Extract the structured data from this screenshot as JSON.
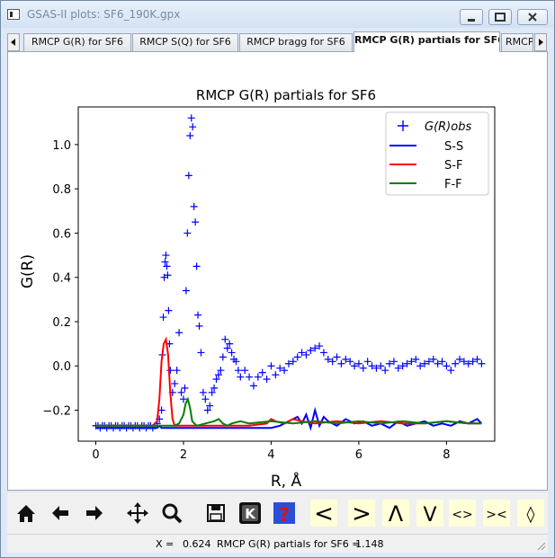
{
  "window": {
    "title": "GSAS-II plots: SF6_190K.gpx"
  },
  "tabs": [
    "RMCP G(R) for SF6",
    "RMCP S(Q) for SF6",
    "RMCP bragg for SF6",
    "RMCP G(R) partials for SF6",
    "RMCP"
  ],
  "active_tab": 3,
  "toolbar": {
    "home": "home-icon",
    "back": "back-arrow-icon",
    "forward": "forward-arrow-icon",
    "pan": "pan-icon",
    "zoom": "zoom-icon",
    "save": "save-icon",
    "key": "K",
    "help": "?",
    "left": "<",
    "right": ">",
    "up": "Λ",
    "down": "V",
    "expand": "<>",
    "contract": "><",
    "updown": "◊"
  },
  "status": {
    "x_label": "X =",
    "x_value": "0.624",
    "y_label": "RMCP G(R) partials for SF6 =",
    "y_value": "1.148"
  },
  "chart_data": {
    "type": "line",
    "title": "RMCP G(R) partials for SF6",
    "xlabel": "R, Å",
    "ylabel": "G(R)",
    "xlim": [
      -0.4,
      9.1
    ],
    "ylim": [
      -0.34,
      1.17
    ],
    "xticks": [
      0,
      2,
      4,
      6,
      8
    ],
    "yticks": [
      -0.2,
      0.0,
      0.2,
      0.4,
      0.6,
      0.8,
      1.0
    ],
    "legend_position": "top-right",
    "legend": [
      "G(R)obs",
      "S-S",
      "S-F",
      "F-F"
    ],
    "series": [
      {
        "name": "G(R)obs",
        "style": "marker",
        "color": "#0000ff",
        "x": [
          0.0,
          0.05,
          0.1,
          0.15,
          0.2,
          0.25,
          0.3,
          0.35,
          0.4,
          0.45,
          0.5,
          0.55,
          0.6,
          0.65,
          0.7,
          0.75,
          0.8,
          0.85,
          0.9,
          0.95,
          1.0,
          1.05,
          1.1,
          1.15,
          1.2,
          1.25,
          1.3,
          1.35,
          1.4,
          1.45,
          1.5,
          1.52,
          1.54,
          1.56,
          1.58,
          1.6,
          1.62,
          1.64,
          1.66,
          1.68,
          1.7,
          1.75,
          1.8,
          1.85,
          1.9,
          1.95,
          2.0,
          2.03,
          2.06,
          2.09,
          2.12,
          2.15,
          2.18,
          2.21,
          2.24,
          2.27,
          2.3,
          2.33,
          2.36,
          2.4,
          2.45,
          2.5,
          2.55,
          2.6,
          2.65,
          2.7,
          2.75,
          2.8,
          2.85,
          2.9,
          2.95,
          3.0,
          3.05,
          3.1,
          3.15,
          3.2,
          3.25,
          3.3,
          3.4,
          3.5,
          3.6,
          3.7,
          3.8,
          3.9,
          4.0,
          4.1,
          4.2,
          4.3,
          4.4,
          4.5,
          4.6,
          4.7,
          4.8,
          4.9,
          5.0,
          5.1,
          5.2,
          5.3,
          5.4,
          5.5,
          5.6,
          5.7,
          5.8,
          5.9,
          6.0,
          6.1,
          6.2,
          6.3,
          6.4,
          6.5,
          6.6,
          6.7,
          6.8,
          6.9,
          7.0,
          7.1,
          7.2,
          7.3,
          7.4,
          7.5,
          7.6,
          7.7,
          7.8,
          7.9,
          8.0,
          8.1,
          8.2,
          8.3,
          8.4,
          8.5,
          8.6,
          8.7,
          8.8
        ],
        "y": [
          -0.27,
          -0.27,
          -0.28,
          -0.27,
          -0.27,
          -0.28,
          -0.27,
          -0.27,
          -0.28,
          -0.27,
          -0.27,
          -0.28,
          -0.27,
          -0.27,
          -0.28,
          -0.27,
          -0.27,
          -0.28,
          -0.27,
          -0.27,
          -0.28,
          -0.27,
          -0.27,
          -0.28,
          -0.27,
          -0.27,
          -0.28,
          -0.27,
          -0.26,
          -0.24,
          -0.2,
          0.05,
          0.22,
          0.4,
          0.47,
          0.5,
          0.45,
          0.41,
          0.25,
          0.1,
          -0.02,
          -0.12,
          -0.08,
          -0.02,
          0.15,
          -0.12,
          -0.15,
          -0.1,
          0.34,
          0.6,
          0.86,
          1.04,
          1.12,
          1.08,
          0.72,
          0.65,
          0.45,
          0.23,
          0.18,
          0.06,
          -0.12,
          -0.15,
          -0.2,
          -0.18,
          -0.12,
          -0.1,
          -0.06,
          -0.04,
          -0.02,
          0.04,
          0.12,
          0.08,
          0.1,
          0.06,
          0.03,
          0.02,
          -0.02,
          -0.05,
          -0.02,
          -0.05,
          -0.09,
          -0.05,
          -0.03,
          -0.06,
          0.0,
          -0.04,
          -0.01,
          -0.02,
          0.01,
          0.02,
          0.04,
          0.06,
          0.05,
          0.07,
          0.08,
          0.09,
          0.06,
          0.03,
          0.02,
          0.04,
          0.01,
          0.03,
          0.02,
          0.0,
          0.01,
          -0.01,
          0.02,
          0.0,
          -0.01,
          0.0,
          -0.02,
          0.01,
          0.02,
          -0.01,
          0.0,
          0.01,
          0.02,
          0.03,
          0.0,
          0.01,
          0.02,
          0.03,
          0.01,
          0.02,
          0.0,
          -0.02,
          0.01,
          0.03,
          0.02,
          0.01,
          0.02,
          0.03,
          0.01
        ]
      },
      {
        "name": "S-S",
        "style": "line",
        "color": "#0000ff",
        "x": [
          0.0,
          1.4,
          1.45,
          1.5,
          1.6,
          1.8,
          2.0,
          2.2,
          2.4,
          2.6,
          2.8,
          3.0,
          3.2,
          3.4,
          3.6,
          3.8,
          4.0,
          4.2,
          4.4,
          4.6,
          4.7,
          4.8,
          4.9,
          5.0,
          5.1,
          5.2,
          5.3,
          5.5,
          5.7,
          5.9,
          6.1,
          6.3,
          6.5,
          6.7,
          6.9,
          7.1,
          7.3,
          7.5,
          7.7,
          7.9,
          8.1,
          8.3,
          8.5,
          8.7,
          8.8
        ],
        "y": [
          -0.28,
          -0.28,
          -0.27,
          -0.28,
          -0.28,
          -0.28,
          -0.28,
          -0.28,
          -0.28,
          -0.28,
          -0.28,
          -0.28,
          -0.28,
          -0.28,
          -0.28,
          -0.28,
          -0.28,
          -0.27,
          -0.25,
          -0.23,
          -0.26,
          -0.22,
          -0.28,
          -0.2,
          -0.27,
          -0.23,
          -0.25,
          -0.27,
          -0.24,
          -0.26,
          -0.25,
          -0.27,
          -0.26,
          -0.28,
          -0.25,
          -0.27,
          -0.26,
          -0.25,
          -0.27,
          -0.26,
          -0.27,
          -0.25,
          -0.26,
          -0.24,
          -0.26
        ]
      },
      {
        "name": "S-F",
        "style": "line",
        "color": "#ff0000",
        "x": [
          0.0,
          1.3,
          1.4,
          1.45,
          1.5,
          1.55,
          1.6,
          1.65,
          1.7,
          1.75,
          1.8,
          1.9,
          2.0,
          2.5,
          3.0,
          3.5,
          3.9,
          4.0,
          4.1,
          4.3,
          4.5,
          4.7,
          5.0,
          5.5,
          6.0,
          6.5,
          7.0,
          7.5,
          8.0,
          8.5,
          8.8
        ],
        "y": [
          -0.27,
          -0.27,
          -0.25,
          -0.15,
          0.02,
          0.1,
          0.12,
          0.05,
          -0.12,
          -0.24,
          -0.27,
          -0.27,
          -0.27,
          -0.27,
          -0.27,
          -0.27,
          -0.26,
          -0.24,
          -0.25,
          -0.26,
          -0.24,
          -0.25,
          -0.26,
          -0.25,
          -0.26,
          -0.25,
          -0.26,
          -0.26,
          -0.25,
          -0.26,
          -0.26
        ]
      },
      {
        "name": "F-F",
        "style": "line",
        "color": "#008000",
        "x": [
          0.0,
          1.8,
          1.9,
          2.0,
          2.05,
          2.1,
          2.15,
          2.2,
          2.3,
          2.5,
          2.7,
          2.8,
          2.9,
          3.0,
          3.1,
          3.3,
          3.5,
          4.0,
          4.5,
          5.0,
          5.5,
          6.0,
          6.5,
          7.0,
          7.5,
          8.0,
          8.5,
          8.8
        ],
        "y": [
          -0.27,
          -0.27,
          -0.26,
          -0.22,
          -0.17,
          -0.15,
          -0.19,
          -0.25,
          -0.27,
          -0.26,
          -0.25,
          -0.24,
          -0.26,
          -0.27,
          -0.26,
          -0.25,
          -0.26,
          -0.25,
          -0.26,
          -0.25,
          -0.26,
          -0.25,
          -0.26,
          -0.25,
          -0.26,
          -0.25,
          -0.26,
          -0.26
        ]
      }
    ]
  }
}
